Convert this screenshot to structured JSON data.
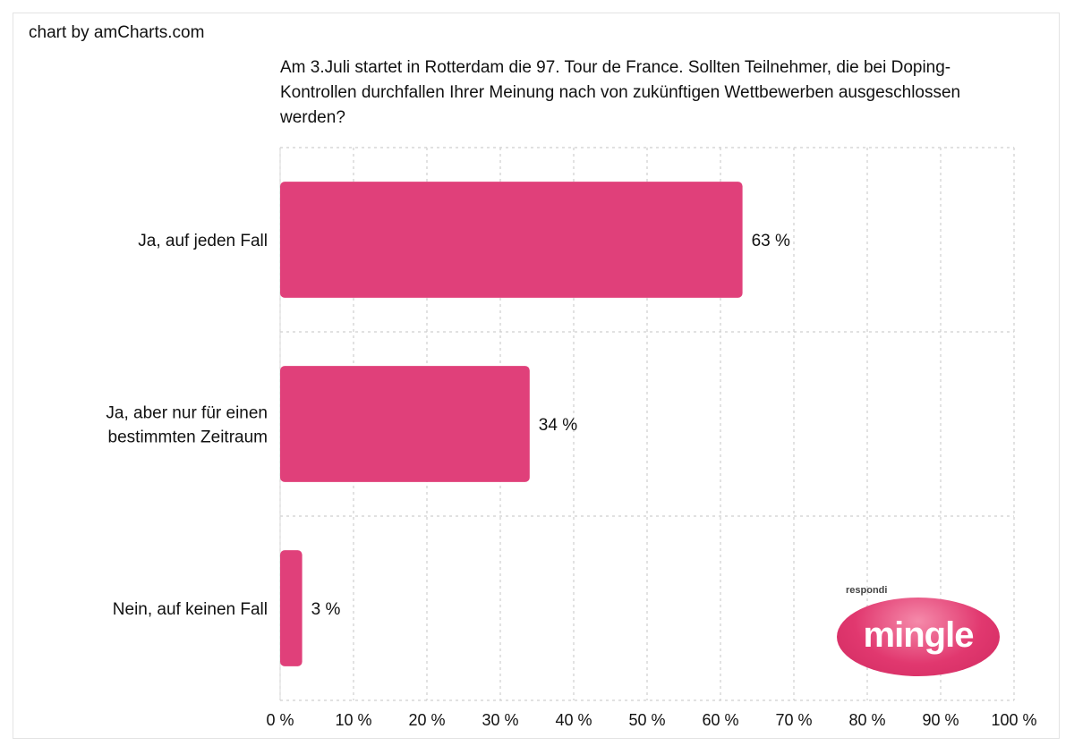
{
  "credit": "chart by amCharts.com",
  "logo": {
    "small_text": "respondi",
    "brand_text": "mingle"
  },
  "chart_data": {
    "type": "bar",
    "orientation": "horizontal",
    "title": "Am 3.Juli startet in Rotterdam die 97. Tour de France. Sollten Teilnehmer, die bei Doping-Kontrollen durchfallen Ihrer Meinung nach von zukünftigen Wettbewerben ausgeschlossen werden?",
    "categories": [
      "Ja, auf jeden Fall",
      "Ja, aber nur für einen bestimmten Zeitraum",
      "Nein, auf keinen Fall"
    ],
    "category_lines": [
      [
        "Ja, auf jeden Fall"
      ],
      [
        "Ja, aber nur für einen",
        "bestimmten Zeitraum"
      ],
      [
        "Nein, auf keinen Fall"
      ]
    ],
    "values": [
      63,
      34,
      3
    ],
    "value_labels": [
      "63 %",
      "34 %",
      "3 %"
    ],
    "xlim": [
      0,
      100
    ],
    "ticks": [
      0,
      10,
      20,
      30,
      40,
      50,
      60,
      70,
      80,
      90,
      100
    ],
    "tick_labels": [
      "0 %",
      "10 %",
      "20 %",
      "30 %",
      "40 %",
      "50 %",
      "60 %",
      "70 %",
      "80 %",
      "90 %",
      "100 %"
    ],
    "grid": true,
    "bar_color": "#e0407a"
  }
}
